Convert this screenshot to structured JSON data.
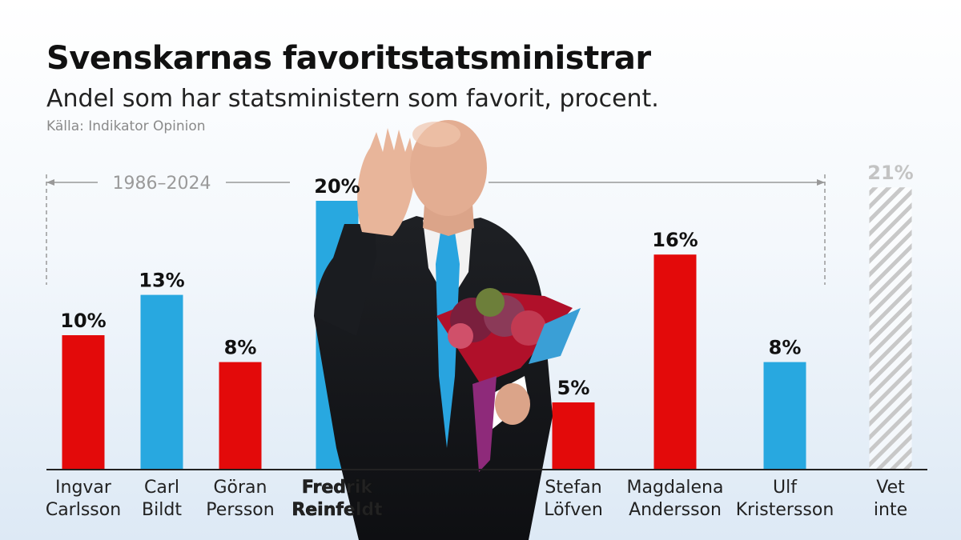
{
  "header": {
    "title": "Svenskarnas favoritstatsministrar",
    "subtitle": "Andel som har statsministern som favorit, procent.",
    "source": "Källa: Indikator Opinion"
  },
  "period_label": "1986–2024",
  "photo": "Fredrik Reinfeldt waving, holding a bouquet of flowers",
  "colors": {
    "red": "#e30a0a",
    "blue": "#28a8e0",
    "unknown_hatch": "#c8c8c8",
    "axis": "#222222",
    "bracket": "#999999"
  },
  "chart_data": {
    "type": "bar",
    "title": "Svenskarnas favoritstatsministrar",
    "subtitle": "Andel som har statsministern som favorit, procent.",
    "unit": "%",
    "ylim": [
      0,
      21
    ],
    "grid": false,
    "categories": [
      {
        "name": "Ingvar Carlsson",
        "lines": [
          "Ingvar",
          "Carlsson"
        ],
        "value": 10,
        "label": "10%",
        "color": "red"
      },
      {
        "name": "Carl Bildt",
        "lines": [
          "Carl",
          "Bildt"
        ],
        "value": 13,
        "label": "13%",
        "color": "blue"
      },
      {
        "name": "Göran Persson",
        "lines": [
          "Göran",
          "Persson"
        ],
        "value": 8,
        "label": "8%",
        "color": "red"
      },
      {
        "name": "Fredrik Reinfeldt",
        "lines": [
          "Fredrik",
          "Reinfeldt"
        ],
        "value": 20,
        "label": "20%",
        "color": "blue",
        "highlight": true
      },
      {
        "name": "Stefan Löfven",
        "lines": [
          "Stefan",
          "Löfven"
        ],
        "value": 5,
        "label": "5%",
        "color": "red"
      },
      {
        "name": "Magdalena Andersson",
        "lines": [
          "Magdalena",
          "Andersson"
        ],
        "value": 16,
        "label": "16%",
        "color": "red"
      },
      {
        "name": "Ulf Kristersson",
        "lines": [
          "Ulf",
          "Kristersson"
        ],
        "value": 8,
        "label": "8%",
        "color": "blue"
      },
      {
        "name": "Vet inte",
        "lines": [
          "Vet",
          "inte"
        ],
        "value": 21,
        "label": "21%",
        "color": "unknown_hatch",
        "hatched": true
      }
    ]
  }
}
